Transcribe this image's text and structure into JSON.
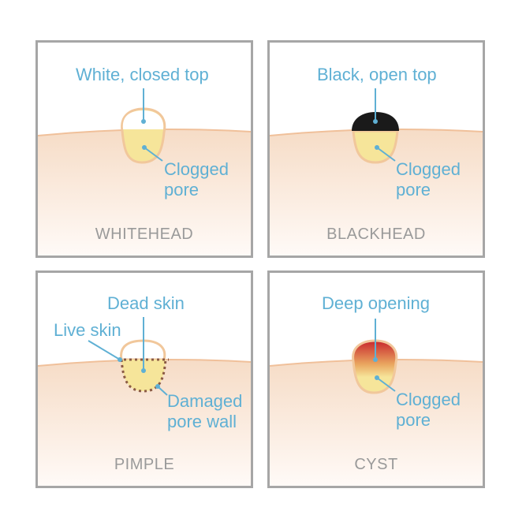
{
  "colors": {
    "frame": "#a6a6a6",
    "skin_top": "#f6dcc6",
    "skin_bottom": "#fffaf7",
    "skin_line": "#f0c09a",
    "pore_fill": "#f6e59a",
    "pore_border": "#f1c79b",
    "label": "#5fb0d4",
    "title": "#9a9a9a",
    "blackhead_top": "#1a1a1a",
    "damaged_wall": "#8a5a44",
    "cyst_red": "#c8262d"
  },
  "panels": [
    {
      "id": "whitehead",
      "title": "WHITEHEAD",
      "top_label": "White, closed top",
      "bottom_label_1": "Clogged",
      "bottom_label_2": "pore"
    },
    {
      "id": "blackhead",
      "title": "BLACKHEAD",
      "top_label": "Black, open top",
      "bottom_label_1": "Clogged",
      "bottom_label_2": "pore"
    },
    {
      "id": "pimple",
      "title": "PIMPLE",
      "top_label": "Dead skin",
      "side_label": "Live skin",
      "bottom_label_1": "Damaged",
      "bottom_label_2": "pore wall"
    },
    {
      "id": "cyst",
      "title": "CYST",
      "top_label": "Deep opening",
      "bottom_label_1": "Clogged",
      "bottom_label_2": "pore"
    }
  ]
}
